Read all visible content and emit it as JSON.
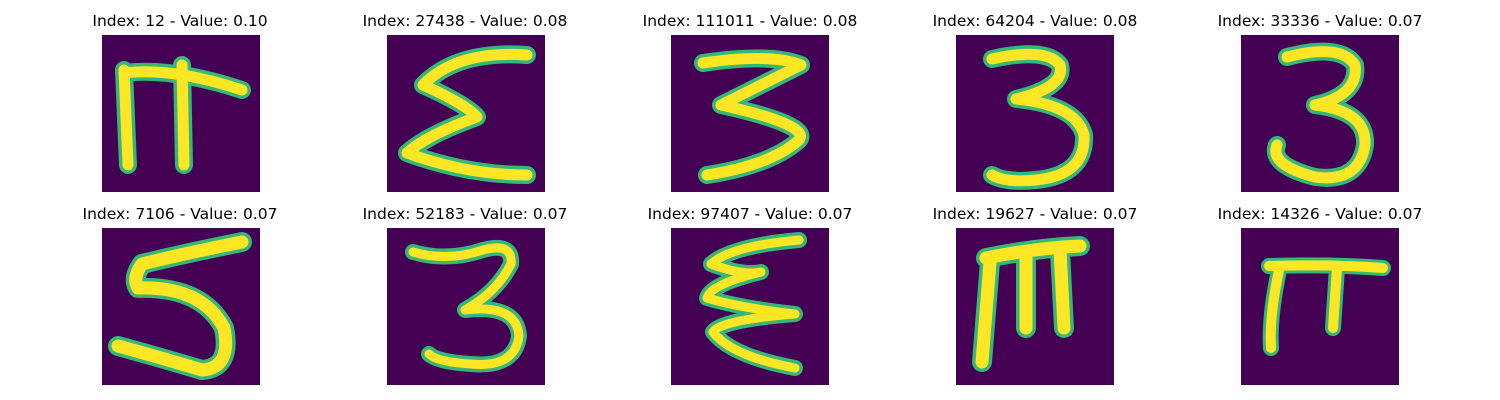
{
  "figure": {
    "background_color": "#ffffff",
    "colormap": {
      "low": "#440154",
      "mid_low": "#31688e",
      "mid_high": "#35b779",
      "high": "#fde725"
    },
    "panels": [
      {
        "title": "Index: 12 - Value: 0.10",
        "glyph": "pi-like-hooked"
      },
      {
        "title": "Index: 27438 - Value: 0.08",
        "glyph": "sigma-like"
      },
      {
        "title": "Index: 111011 - Value: 0.08",
        "glyph": "three-angular"
      },
      {
        "title": "Index: 64204 - Value: 0.08",
        "glyph": "three-rounded"
      },
      {
        "title": "Index: 33336 - Value: 0.07",
        "glyph": "three-curled"
      },
      {
        "title": "Index: 7106 - Value: 0.07",
        "glyph": "five"
      },
      {
        "title": "Index: 52183 - Value: 0.07",
        "glyph": "three-small"
      },
      {
        "title": "Index: 97407 - Value: 0.07",
        "glyph": "sigma-wavy"
      },
      {
        "title": "Index: 19627 - Value: 0.07",
        "glyph": "m-like"
      },
      {
        "title": "Index: 14326 - Value: 0.07",
        "glyph": "pi"
      }
    ]
  }
}
